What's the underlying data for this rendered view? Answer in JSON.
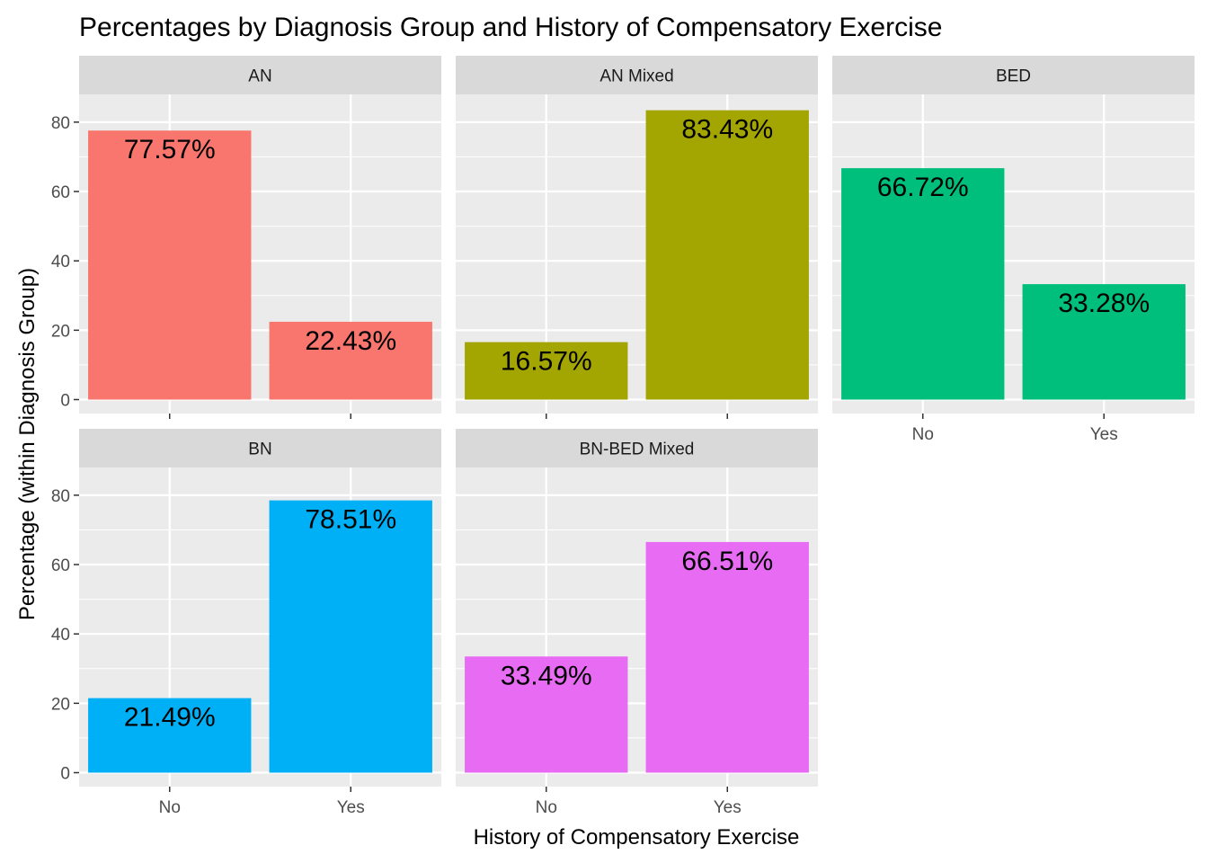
{
  "chart_data": {
    "type": "bar",
    "title": "Percentages by Diagnosis Group and History of Compensatory Exercise",
    "xlabel": "History of Compensatory Exercise",
    "ylabel": "Percentage (within Diagnosis Group)",
    "categories": [
      "No",
      "Yes"
    ],
    "ylim": [
      0,
      88
    ],
    "yticks": [
      0,
      20,
      40,
      60,
      80
    ],
    "grid": true,
    "legend": "none",
    "facets": [
      {
        "name": "AN",
        "color": "#F8766D",
        "values": [
          77.57,
          22.43
        ],
        "labels": [
          "77.57%",
          "22.43%"
        ]
      },
      {
        "name": "AN Mixed",
        "color": "#A3A500",
        "values": [
          16.57,
          83.43
        ],
        "labels": [
          "16.57%",
          "83.43%"
        ]
      },
      {
        "name": "BED",
        "color": "#00BF7D",
        "values": [
          66.72,
          33.28
        ],
        "labels": [
          "66.72%",
          "33.28%"
        ]
      },
      {
        "name": "BN",
        "color": "#00B0F6",
        "values": [
          21.49,
          78.51
        ],
        "labels": [
          "21.49%",
          "78.51%"
        ]
      },
      {
        "name": "BN-BED Mixed",
        "color": "#E76BF3",
        "values": [
          33.49,
          66.51
        ],
        "labels": [
          "33.49%",
          "66.51%"
        ]
      }
    ]
  }
}
